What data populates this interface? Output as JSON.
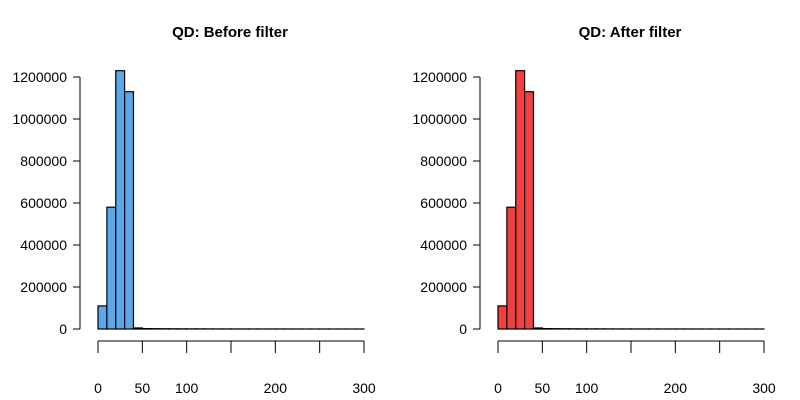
{
  "chart_data": [
    {
      "type": "bar",
      "title": "QD: Before filter",
      "xlabel": "",
      "ylabel": "",
      "color": "#5aa8e8",
      "bin_width": 10,
      "bin_edges_start": 0,
      "values": [
        110000,
        580000,
        1230000,
        1130000,
        5000,
        2000,
        1500,
        1200,
        1000,
        800,
        700,
        600,
        500,
        450,
        400,
        350,
        300,
        280,
        260,
        240,
        220,
        200,
        180,
        160,
        150,
        140,
        130,
        120,
        110,
        100
      ],
      "xlim": [
        0,
        300
      ],
      "ylim": [
        0,
        1200000
      ],
      "x_ticks": [
        0,
        50,
        100,
        150,
        200,
        250,
        300
      ],
      "x_tick_labels": [
        "0",
        "50",
        "100",
        "",
        "200",
        "",
        "300"
      ],
      "y_ticks": [
        0,
        200000,
        400000,
        600000,
        800000,
        1000000,
        1200000
      ],
      "y_tick_labels": [
        "0",
        "200000",
        "400000",
        "600000",
        "800000",
        "1000000",
        "1200000"
      ]
    },
    {
      "type": "bar",
      "title": "QD: After filter",
      "xlabel": "",
      "ylabel": "",
      "color": "#f04040",
      "bin_width": 10,
      "bin_edges_start": 0,
      "values": [
        110000,
        580000,
        1230000,
        1130000,
        5000,
        2000,
        1500,
        1200,
        1000,
        800,
        700,
        600,
        500,
        450,
        400,
        350,
        300,
        280,
        260,
        240,
        220,
        200,
        180,
        160,
        150,
        140,
        130,
        120,
        110,
        100
      ],
      "xlim": [
        0,
        300
      ],
      "ylim": [
        0,
        1200000
      ],
      "x_ticks": [
        0,
        50,
        100,
        150,
        200,
        250,
        300
      ],
      "x_tick_labels": [
        "0",
        "50",
        "100",
        "",
        "200",
        "",
        "300"
      ],
      "y_ticks": [
        0,
        200000,
        400000,
        600000,
        800000,
        1000000,
        1200000
      ],
      "y_tick_labels": [
        "0",
        "200000",
        "400000",
        "600000",
        "800000",
        "1000000",
        "1200000"
      ]
    }
  ]
}
